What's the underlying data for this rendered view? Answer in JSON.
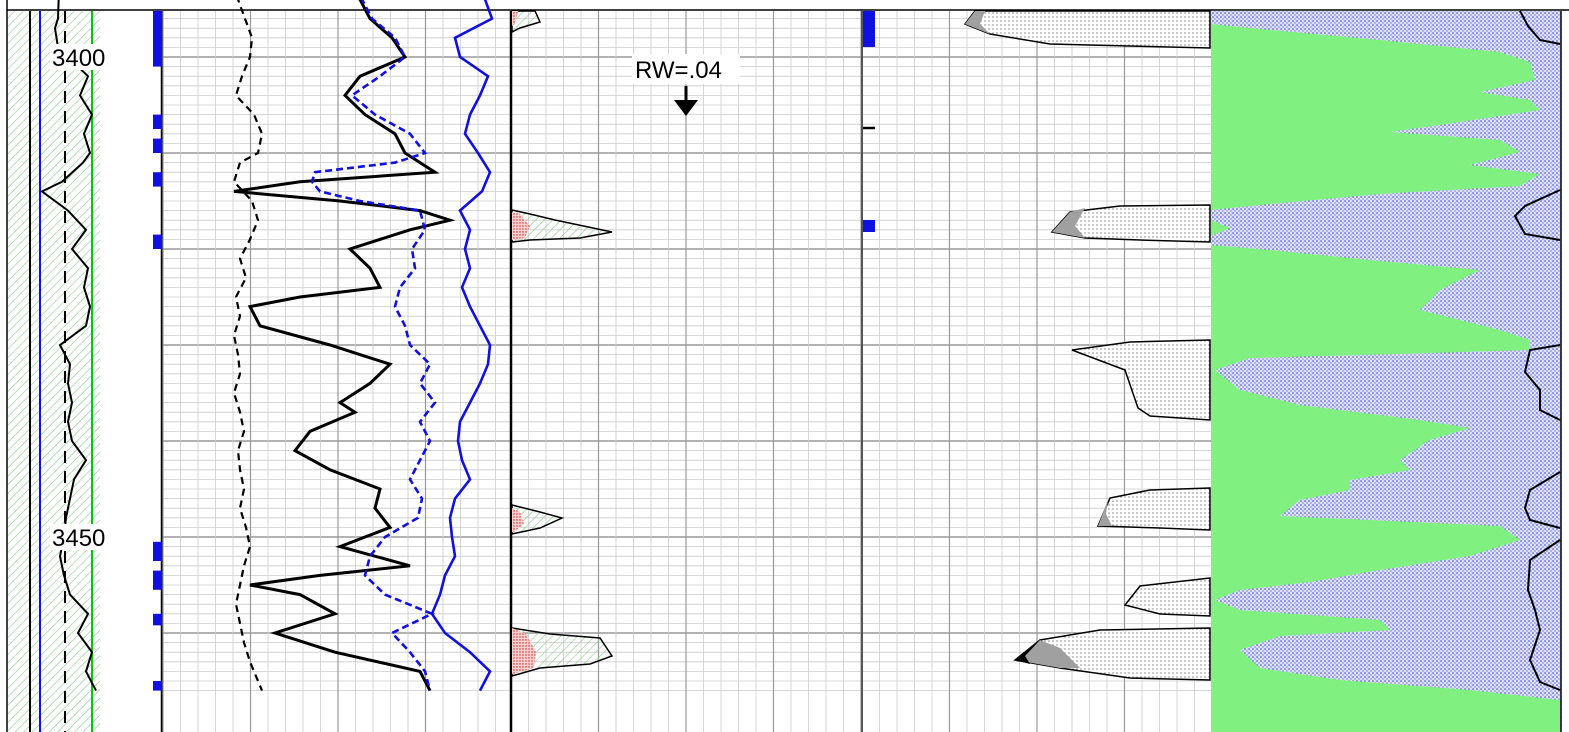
{
  "chart_data": {
    "type": "line",
    "title": "",
    "depth_axis": {
      "label": "",
      "range": [
        3390,
        3466
      ],
      "tick_labels": [
        "3400",
        "3450"
      ]
    },
    "annotations": [
      {
        "text": "RW=.04",
        "marker": "down-arrow"
      }
    ],
    "tracks": [
      {
        "name": "depth-track",
        "series": [
          {
            "style": "solid-black",
            "points": [
              [
                3390,
                60
              ],
              [
                3396,
                58
              ],
              [
                3397,
                55
              ],
              [
                3399,
                58
              ],
              [
                3402,
                88
              ],
              [
                3404,
                80
              ],
              [
                3406,
                92
              ],
              [
                3408,
                84
              ],
              [
                3410,
                90
              ],
              [
                3411,
                83
              ],
              [
                3413,
                62
              ],
              [
                3414,
                42
              ],
              [
                3416,
                68
              ],
              [
                3418,
                86
              ],
              [
                3420,
                72
              ],
              [
                3422,
                88
              ],
              [
                3424,
                84
              ],
              [
                3426,
                90
              ],
              [
                3428,
                86
              ],
              [
                3430,
                60
              ],
              [
                3432,
                70
              ],
              [
                3434,
                68
              ],
              [
                3436,
                72
              ],
              [
                3438,
                68
              ],
              [
                3440,
                72
              ],
              [
                3442,
                86
              ],
              [
                3444,
                74
              ],
              [
                3446,
                70
              ],
              [
                3448,
                66
              ],
              [
                3450,
                64
              ],
              [
                3452,
                60
              ],
              [
                3454,
                64
              ],
              [
                3456,
                70
              ],
              [
                3458,
                88
              ],
              [
                3460,
                78
              ],
              [
                3462,
                92
              ],
              [
                3464,
                86
              ],
              [
                3466,
                96
              ]
            ]
          },
          {
            "style": "dashed-black",
            "points": [
              [
                3390,
                65
              ],
              [
                3466,
                65
              ]
            ]
          }
        ]
      },
      {
        "name": "curve-track-1",
        "series": [
          {
            "style": "dashed-black",
            "points": [
              [
                3390,
                228
              ],
              [
                3392,
                232
              ],
              [
                3394,
                238
              ],
              [
                3396,
                245
              ],
              [
                3398,
                252
              ],
              [
                3400,
                250
              ],
              [
                3402,
                242
              ],
              [
                3404,
                236
              ],
              [
                3406,
                254
              ],
              [
                3408,
                262
              ],
              [
                3410,
                258
              ],
              [
                3411,
                240
              ],
              [
                3413,
                234
              ],
              [
                3415,
                252
              ],
              [
                3417,
                258
              ],
              [
                3419,
                250
              ],
              [
                3421,
                240
              ],
              [
                3423,
                246
              ],
              [
                3425,
                236
              ],
              [
                3427,
                240
              ],
              [
                3429,
                234
              ],
              [
                3431,
                238
              ],
              [
                3433,
                240
              ],
              [
                3435,
                234
              ],
              [
                3437,
                240
              ],
              [
                3439,
                244
              ],
              [
                3441,
                238
              ],
              [
                3443,
                240
              ],
              [
                3445,
                244
              ],
              [
                3447,
                240
              ],
              [
                3449,
                246
              ],
              [
                3451,
                250
              ],
              [
                3453,
                244
              ],
              [
                3455,
                240
              ],
              [
                3457,
                236
              ],
              [
                3459,
                240
              ],
              [
                3461,
                244
              ],
              [
                3463,
                250
              ],
              [
                3466,
                262
              ]
            ]
          },
          {
            "style": "solid-black",
            "points": [
              [
                3390,
                322
              ],
              [
                3392,
                330
              ],
              [
                3394,
                360
              ],
              [
                3396,
                370
              ],
              [
                3398,
                392
              ],
              [
                3400,
                405
              ],
              [
                3402,
                360
              ],
              [
                3404,
                345
              ],
              [
                3406,
                365
              ],
              [
                3408,
                395
              ],
              [
                3410,
                405
              ],
              [
                3411,
                420
              ],
              [
                3412,
                435
              ],
              [
                3413,
                300
              ],
              [
                3414,
                234
              ],
              [
                3415,
                340
              ],
              [
                3416,
                420
              ],
              [
                3417,
                450
              ],
              [
                3418,
                410
              ],
              [
                3420,
                350
              ],
              [
                3422,
                370
              ],
              [
                3424,
                380
              ],
              [
                3425,
                300
              ],
              [
                3426,
                250
              ],
              [
                3428,
                260
              ],
              [
                3430,
                330
              ],
              [
                3432,
                390
              ],
              [
                3434,
                370
              ],
              [
                3436,
                340
              ],
              [
                3437,
                355
              ],
              [
                3439,
                310
              ],
              [
                3441,
                295
              ],
              [
                3443,
                330
              ],
              [
                3445,
                380
              ],
              [
                3447,
                375
              ],
              [
                3449,
                390
              ],
              [
                3451,
                340
              ],
              [
                3453,
                410
              ],
              [
                3454,
                320
              ],
              [
                3455,
                250
              ],
              [
                3456,
                300
              ],
              [
                3458,
                335
              ],
              [
                3460,
                275
              ],
              [
                3462,
                335
              ],
              [
                3464,
                420
              ],
              [
                3466,
                430
              ]
            ]
          },
          {
            "style": "dashed-blue",
            "points": [
              [
                3390,
                325
              ],
              [
                3392,
                330
              ],
              [
                3394,
                362
              ],
              [
                3396,
                372
              ],
              [
                3398,
                395
              ],
              [
                3400,
                405
              ],
              [
                3402,
                380
              ],
              [
                3404,
                352
              ],
              [
                3406,
                375
              ],
              [
                3408,
                410
              ],
              [
                3410,
                425
              ],
              [
                3411,
                395
              ],
              [
                3412,
                315
              ],
              [
                3413,
                312
              ],
              [
                3414,
                320
              ],
              [
                3415,
                360
              ],
              [
                3416,
                420
              ],
              [
                3418,
                425
              ],
              [
                3420,
                412
              ],
              [
                3422,
                415
              ],
              [
                3424,
                400
              ],
              [
                3426,
                395
              ],
              [
                3428,
                405
              ],
              [
                3430,
                410
              ],
              [
                3432,
                430
              ],
              [
                3434,
                420
              ],
              [
                3436,
                435
              ],
              [
                3438,
                420
              ],
              [
                3440,
                430
              ],
              [
                3442,
                420
              ],
              [
                3444,
                410
              ],
              [
                3446,
                422
              ],
              [
                3448,
                418
              ],
              [
                3450,
                385
              ],
              [
                3452,
                370
              ],
              [
                3454,
                365
              ],
              [
                3456,
                385
              ],
              [
                3458,
                432
              ],
              [
                3460,
                392
              ],
              [
                3462,
                410
              ],
              [
                3464,
                425
              ],
              [
                3466,
                430
              ]
            ]
          },
          {
            "style": "solid-blue",
            "points": [
              [
                3390,
                418
              ],
              [
                3392,
                450
              ],
              [
                3394,
                485
              ],
              [
                3396,
                492
              ],
              [
                3398,
                455
              ],
              [
                3400,
                460
              ],
              [
                3402,
                488
              ],
              [
                3404,
                480
              ],
              [
                3406,
                470
              ],
              [
                3408,
                465
              ],
              [
                3410,
                478
              ],
              [
                3412,
                490
              ],
              [
                3414,
                482
              ],
              [
                3416,
                460
              ],
              [
                3418,
                470
              ],
              [
                3420,
                465
              ],
              [
                3422,
                470
              ],
              [
                3424,
                462
              ],
              [
                3426,
                470
              ],
              [
                3428,
                480
              ],
              [
                3430,
                490
              ],
              [
                3432,
                488
              ],
              [
                3434,
                480
              ],
              [
                3436,
                470
              ],
              [
                3438,
                460
              ],
              [
                3440,
                458
              ],
              [
                3442,
                462
              ],
              [
                3444,
                470
              ],
              [
                3446,
                455
              ],
              [
                3448,
                450
              ],
              [
                3450,
                452
              ],
              [
                3452,
                455
              ],
              [
                3454,
                445
              ],
              [
                3456,
                440
              ],
              [
                3458,
                432
              ],
              [
                3460,
                445
              ],
              [
                3462,
                470
              ],
              [
                3464,
                490
              ],
              [
                3466,
                480
              ]
            ]
          }
        ]
      },
      {
        "name": "resistivity-track",
        "scale_markers": [
          {
            "text": "RW=.04"
          }
        ]
      },
      {
        "name": "saturation-track",
        "colors": {
          "hydrocarbon": "#7ef27e",
          "water": "#6e7bd8"
        }
      }
    ],
    "grid": true
  },
  "colors": {
    "blue": "#1010e0",
    "green": "#00cc00",
    "fill_green": "#80f080",
    "hatch_green": "#88cc88",
    "red_fill": "#e05050",
    "gray": "#a0a0a0"
  }
}
